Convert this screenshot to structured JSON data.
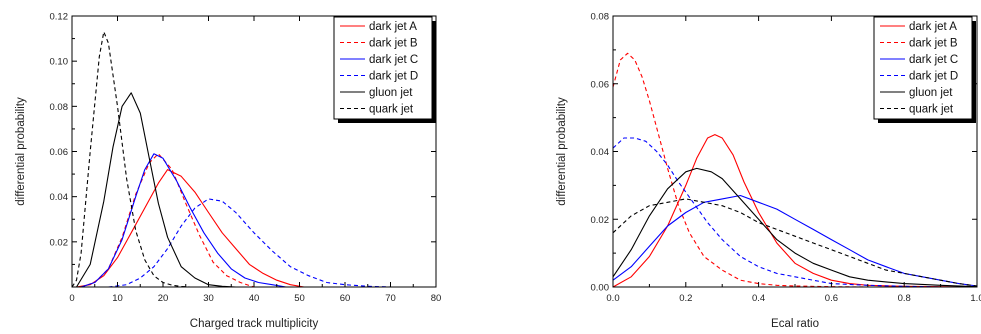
{
  "chart_data": [
    {
      "type": "line",
      "xlabel": "Charged track multiplicity",
      "ylabel": "differential probability",
      "xlim": [
        0,
        80
      ],
      "ylim": [
        0,
        0.12
      ],
      "xticks": [
        0,
        10,
        20,
        30,
        40,
        50,
        60,
        70,
        80
      ],
      "xtick_labels": [
        "0",
        "10",
        "20",
        "30",
        "40",
        "50",
        "60",
        "70",
        "80"
      ],
      "yticks": [
        0.02,
        0.04,
        0.06,
        0.08,
        0.1,
        0.12
      ],
      "ytick_labels": [
        "0.02",
        "0.04",
        "0.06",
        "0.08",
        "0.10",
        "0.12"
      ],
      "grid": false,
      "legend_position": "top-right",
      "series": [
        {
          "name": "dark jet A",
          "color": "#ff0000",
          "dash": "solid",
          "x": [
            1,
            4,
            7,
            10,
            13,
            16,
            19,
            21,
            24,
            27,
            30,
            33,
            36,
            39,
            42,
            45,
            48,
            51
          ],
          "y": [
            0,
            0.001,
            0.005,
            0.013,
            0.024,
            0.035,
            0.046,
            0.052,
            0.049,
            0.042,
            0.033,
            0.024,
            0.017,
            0.01,
            0.006,
            0.003,
            0.001,
            0
          ]
        },
        {
          "name": "dark jet B",
          "color": "#ff0000",
          "dash": "dashed",
          "x": [
            2,
            5,
            8,
            11,
            14,
            17,
            19,
            22,
            25,
            28,
            31,
            34,
            37,
            40
          ],
          "y": [
            0,
            0.002,
            0.008,
            0.022,
            0.041,
            0.055,
            0.059,
            0.052,
            0.037,
            0.023,
            0.011,
            0.005,
            0.002,
            0
          ]
        },
        {
          "name": "dark jet C",
          "color": "#0000ff",
          "dash": "solid",
          "x": [
            2,
            5,
            8,
            11,
            14,
            16,
            18,
            20,
            23,
            26,
            29,
            32,
            35,
            38,
            41,
            44,
            47
          ],
          "y": [
            0,
            0.002,
            0.008,
            0.021,
            0.04,
            0.052,
            0.059,
            0.057,
            0.047,
            0.035,
            0.024,
            0.015,
            0.008,
            0.004,
            0.002,
            0.001,
            0
          ]
        },
        {
          "name": "dark jet D",
          "color": "#0000ff",
          "dash": "dashed",
          "x": [
            8,
            12,
            15,
            18,
            21,
            24,
            27,
            30,
            33,
            36,
            40,
            44,
            48,
            52,
            56,
            60,
            65,
            70
          ],
          "y": [
            0,
            0.001,
            0.004,
            0.009,
            0.017,
            0.027,
            0.035,
            0.039,
            0.038,
            0.033,
            0.024,
            0.016,
            0.009,
            0.005,
            0.002,
            0.001,
            0.0003,
            0
          ]
        },
        {
          "name": "gluon jet",
          "color": "#000000",
          "dash": "solid",
          "x": [
            1,
            4,
            7,
            9,
            11,
            13,
            15,
            17,
            19,
            21,
            24,
            27,
            30,
            33,
            36
          ],
          "y": [
            0,
            0.01,
            0.038,
            0.062,
            0.08,
            0.086,
            0.077,
            0.057,
            0.037,
            0.022,
            0.009,
            0.004,
            0.001,
            0.0003,
            0
          ]
        },
        {
          "name": "quark jet",
          "color": "#000000",
          "dash": "dashed",
          "x": [
            0,
            1,
            2,
            4,
            6,
            7,
            8,
            10,
            12,
            14,
            16,
            18,
            20,
            22,
            24,
            26
          ],
          "y": [
            0,
            0.003,
            0.015,
            0.06,
            0.102,
            0.113,
            0.108,
            0.08,
            0.048,
            0.025,
            0.012,
            0.005,
            0.002,
            0.0008,
            0.0002,
            0
          ]
        }
      ]
    },
    {
      "type": "line",
      "xlabel": "Ecal ratio",
      "ylabel": "differential probability",
      "xlim": [
        0,
        1.0
      ],
      "ylim": [
        0,
        0.08
      ],
      "xticks": [
        0,
        0.2,
        0.4,
        0.6,
        0.8,
        1.0
      ],
      "xtick_labels": [
        "0.0",
        "0.2",
        "0.4",
        "0.6",
        "0.8",
        "1.0"
      ],
      "yticks": [
        0,
        0.02,
        0.04,
        0.06,
        0.08
      ],
      "ytick_labels": [
        "0.00",
        "0.02",
        "0.04",
        "0.06",
        "0.08"
      ],
      "grid": false,
      "legend_position": "top-right",
      "series": [
        {
          "name": "dark jet A",
          "color": "#ff0000",
          "dash": "solid",
          "x": [
            0,
            0.05,
            0.1,
            0.15,
            0.2,
            0.23,
            0.26,
            0.28,
            0.3,
            0.33,
            0.36,
            0.4,
            0.45,
            0.5,
            0.55,
            0.6,
            0.65,
            0.7,
            0.8,
            0.9,
            1.0
          ],
          "y": [
            0,
            0.003,
            0.009,
            0.018,
            0.03,
            0.038,
            0.044,
            0.045,
            0.044,
            0.039,
            0.031,
            0.022,
            0.013,
            0.007,
            0.004,
            0.002,
            0.001,
            0.0005,
            0.0002,
            0.0001,
            0
          ]
        },
        {
          "name": "dark jet B",
          "color": "#ff0000",
          "dash": "dashed",
          "x": [
            0,
            0.02,
            0.04,
            0.06,
            0.08,
            0.1,
            0.12,
            0.15,
            0.18,
            0.21,
            0.25,
            0.3,
            0.35,
            0.4,
            0.45,
            0.5,
            0.6,
            0.7
          ],
          "y": [
            0.059,
            0.067,
            0.069,
            0.067,
            0.062,
            0.055,
            0.047,
            0.035,
            0.024,
            0.016,
            0.009,
            0.005,
            0.002,
            0.001,
            0.0005,
            0.0003,
            0.0001,
            0
          ]
        },
        {
          "name": "dark jet C",
          "color": "#0000ff",
          "dash": "solid",
          "x": [
            0,
            0.05,
            0.1,
            0.15,
            0.2,
            0.25,
            0.3,
            0.35,
            0.4,
            0.45,
            0.5,
            0.55,
            0.6,
            0.65,
            0.7,
            0.75,
            0.8,
            0.85,
            0.9,
            0.95,
            1.0
          ],
          "y": [
            0.002,
            0.006,
            0.012,
            0.018,
            0.022,
            0.025,
            0.026,
            0.027,
            0.025,
            0.023,
            0.02,
            0.017,
            0.014,
            0.011,
            0.008,
            0.006,
            0.004,
            0.003,
            0.002,
            0.001,
            0.0003
          ]
        },
        {
          "name": "dark jet D",
          "color": "#0000ff",
          "dash": "dashed",
          "x": [
            0,
            0.03,
            0.06,
            0.09,
            0.12,
            0.15,
            0.18,
            0.22,
            0.26,
            0.3,
            0.35,
            0.4,
            0.45,
            0.5,
            0.55,
            0.6,
            0.7,
            0.8,
            0.9
          ],
          "y": [
            0.041,
            0.044,
            0.044,
            0.043,
            0.04,
            0.036,
            0.031,
            0.025,
            0.019,
            0.014,
            0.009,
            0.006,
            0.004,
            0.003,
            0.002,
            0.001,
            0.0005,
            0.0002,
            0
          ]
        },
        {
          "name": "gluon jet",
          "color": "#000000",
          "dash": "solid",
          "x": [
            0,
            0.05,
            0.1,
            0.15,
            0.2,
            0.23,
            0.27,
            0.3,
            0.35,
            0.4,
            0.45,
            0.5,
            0.55,
            0.6,
            0.65,
            0.7,
            0.75,
            0.8,
            0.9,
            1.0
          ],
          "y": [
            0.003,
            0.011,
            0.021,
            0.029,
            0.034,
            0.035,
            0.034,
            0.032,
            0.026,
            0.02,
            0.014,
            0.01,
            0.007,
            0.005,
            0.003,
            0.002,
            0.0015,
            0.001,
            0.0005,
            0.0001
          ]
        },
        {
          "name": "quark jet",
          "color": "#000000",
          "dash": "dashed",
          "x": [
            0,
            0.05,
            0.1,
            0.15,
            0.2,
            0.25,
            0.3,
            0.35,
            0.4,
            0.45,
            0.5,
            0.55,
            0.6,
            0.65,
            0.7,
            0.75,
            0.8,
            0.85,
            0.9,
            0.95,
            1.0
          ],
          "y": [
            0.016,
            0.021,
            0.024,
            0.025,
            0.026,
            0.025,
            0.024,
            0.022,
            0.019,
            0.017,
            0.015,
            0.013,
            0.011,
            0.009,
            0.007,
            0.005,
            0.004,
            0.003,
            0.002,
            0.001,
            0.0003
          ]
        }
      ]
    }
  ]
}
